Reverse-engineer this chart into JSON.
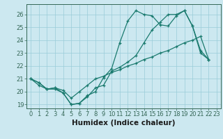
{
  "xlabel": "Humidex (Indice chaleur)",
  "bg_color": "#cce8f0",
  "grid_color": "#99ccd8",
  "line_color": "#1a7a6e",
  "ylim": [
    18.7,
    26.8
  ],
  "xlim": [
    -0.5,
    23.5
  ],
  "yticks": [
    19,
    20,
    21,
    22,
    23,
    24,
    25,
    26
  ],
  "xticks": [
    0,
    1,
    2,
    3,
    4,
    5,
    6,
    7,
    8,
    9,
    10,
    11,
    12,
    13,
    14,
    15,
    16,
    17,
    18,
    19,
    20,
    21,
    22,
    23
  ],
  "line1_x": [
    0,
    1,
    2,
    3,
    4,
    5,
    6,
    7,
    8,
    9,
    10,
    11,
    12,
    13,
    14,
    15,
    16,
    17,
    18,
    19,
    20,
    21,
    22
  ],
  "line1_y": [
    21.0,
    20.7,
    20.2,
    20.2,
    19.9,
    19.0,
    19.1,
    19.7,
    20.0,
    21.1,
    21.8,
    23.8,
    25.5,
    26.3,
    26.0,
    25.9,
    25.2,
    25.1,
    25.9,
    26.3,
    25.1,
    23.2,
    22.5
  ],
  "line2_x": [
    0,
    1,
    2,
    3,
    4,
    5,
    6,
    7,
    8,
    9,
    10,
    11,
    12,
    13,
    14,
    15,
    16,
    17,
    18,
    19,
    20,
    21,
    22
  ],
  "line2_y": [
    21.0,
    20.7,
    20.2,
    20.3,
    19.9,
    19.0,
    19.1,
    19.6,
    20.3,
    20.5,
    21.6,
    21.9,
    22.3,
    22.8,
    23.8,
    24.8,
    25.4,
    26.0,
    26.0,
    26.3,
    25.1,
    23.0,
    22.5
  ],
  "line3_x": [
    0,
    1,
    2,
    3,
    4,
    5,
    6,
    7,
    8,
    9,
    10,
    11,
    12,
    13,
    14,
    15,
    16,
    17,
    18,
    19,
    20,
    21,
    22
  ],
  "line3_y": [
    21.0,
    20.5,
    20.2,
    20.3,
    20.1,
    19.5,
    20.0,
    20.5,
    21.0,
    21.2,
    21.5,
    21.7,
    22.0,
    22.2,
    22.5,
    22.7,
    23.0,
    23.2,
    23.5,
    23.8,
    24.0,
    24.3,
    22.5
  ],
  "spine_color": "#336655",
  "tick_color": "#336655",
  "xlabel_color": "#1a1a1a",
  "xlabel_fontsize": 7.5,
  "tick_fontsize": 6.0
}
